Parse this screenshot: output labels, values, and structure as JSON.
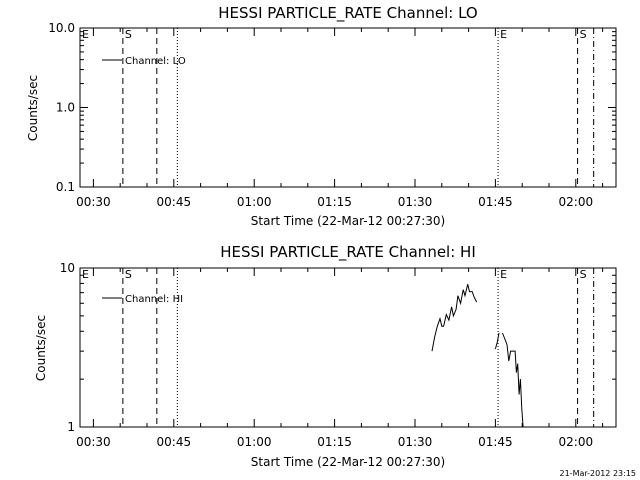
{
  "chart_data": [
    {
      "type": "line",
      "title": "HESSI PARTICLE_RATE Channel: LO",
      "xlabel": "Start Time (22-Mar-12 00:27:30)",
      "ylabel": "Counts/sec",
      "yscale": "log",
      "ylim": [
        0.1,
        10.0
      ],
      "yticks": [
        0.1,
        1.0,
        10.0
      ],
      "ytick_labels": [
        "0.1",
        "1.0",
        "10.0"
      ],
      "xlim": [
        "00:27:30",
        "02:07:30"
      ],
      "xticks": [
        "00:30",
        "00:45",
        "01:00",
        "01:15",
        "01:30",
        "01:45",
        "02:00"
      ],
      "legend": "Channel: LO",
      "legend_position": "top-left",
      "series": [
        {
          "name": "Channel: LO",
          "x": [],
          "y": []
        }
      ],
      "event_markers": [
        {
          "label": "E",
          "time": "00:27:30",
          "style": "dashed"
        },
        {
          "label": "S",
          "time": "00:35:30",
          "style": "dashed"
        },
        {
          "label": "",
          "time": "00:41:50",
          "style": "dashed"
        },
        {
          "label": "",
          "time": "00:45:40",
          "style": "dotted"
        },
        {
          "label": "E",
          "time": "01:45:30",
          "style": "dotted"
        },
        {
          "label": "S",
          "time": "02:00:20",
          "style": "dashed"
        },
        {
          "label": "",
          "time": "02:03:20",
          "style": "dashdot"
        }
      ]
    },
    {
      "type": "line",
      "title": "HESSI PARTICLE_RATE Channel: HI",
      "xlabel": "Start Time (22-Mar-12 00:27:30)",
      "ylabel": "Counts/sec",
      "yscale": "log",
      "ylim": [
        1,
        10
      ],
      "yticks": [
        1,
        10
      ],
      "ytick_labels": [
        "1",
        "10"
      ],
      "xlim": [
        "00:27:30",
        "02:07:30"
      ],
      "xticks": [
        "00:30",
        "00:45",
        "01:00",
        "01:15",
        "01:30",
        "01:45",
        "02:00"
      ],
      "legend": "Channel: HI",
      "legend_position": "top-left",
      "series": [
        {
          "name": "Channel: HI",
          "segments": [
            {
              "x": [
                "01:33:10",
                "01:33:40",
                "01:34:10",
                "01:34:40",
                "01:35:00",
                "01:35:20",
                "01:35:50",
                "01:36:20",
                "01:36:50",
                "01:37:10",
                "01:37:40",
                "01:38:00",
                "01:38:30",
                "01:39:00",
                "01:39:20",
                "01:39:50",
                "01:40:10",
                "01:40:40",
                "01:41:00",
                "01:41:30"
              ],
              "y": [
                3.0,
                3.7,
                4.3,
                4.8,
                4.3,
                4.3,
                5.1,
                4.7,
                5.7,
                5.0,
                5.5,
                6.7,
                6.0,
                7.3,
                6.7,
                7.9,
                7.1,
                7.1,
                6.6,
                6.1
              ]
            },
            {
              "x": [
                "01:45:00",
                "01:45:20",
                "01:45:40"
              ],
              "y": [
                3.1,
                3.4,
                3.9
              ]
            },
            {
              "x": [
                "01:46:20",
                "01:47:10",
                "01:47:30",
                "01:47:50",
                "01:48:10",
                "01:48:40",
                "01:48:55",
                "01:49:10",
                "01:49:25",
                "01:49:40",
                "01:49:55",
                "01:50:10"
              ],
              "y": [
                3.9,
                3.3,
                2.6,
                3.0,
                3.0,
                3.0,
                2.2,
                2.5,
                1.6,
                2.0,
                1.3,
                1.0
              ]
            }
          ]
        }
      ],
      "event_markers": [
        {
          "label": "E",
          "time": "00:27:30",
          "style": "dashed"
        },
        {
          "label": "S",
          "time": "00:35:30",
          "style": "dashed"
        },
        {
          "label": "",
          "time": "00:41:50",
          "style": "dashed"
        },
        {
          "label": "",
          "time": "00:45:40",
          "style": "dotted"
        },
        {
          "label": "E",
          "time": "01:45:30",
          "style": "dotted"
        },
        {
          "label": "S",
          "time": "02:00:20",
          "style": "dashed"
        },
        {
          "label": "",
          "time": "02:03:20",
          "style": "dashdot"
        }
      ]
    }
  ],
  "footer": {
    "timestamp": "21-Mar-2012 23:15"
  }
}
